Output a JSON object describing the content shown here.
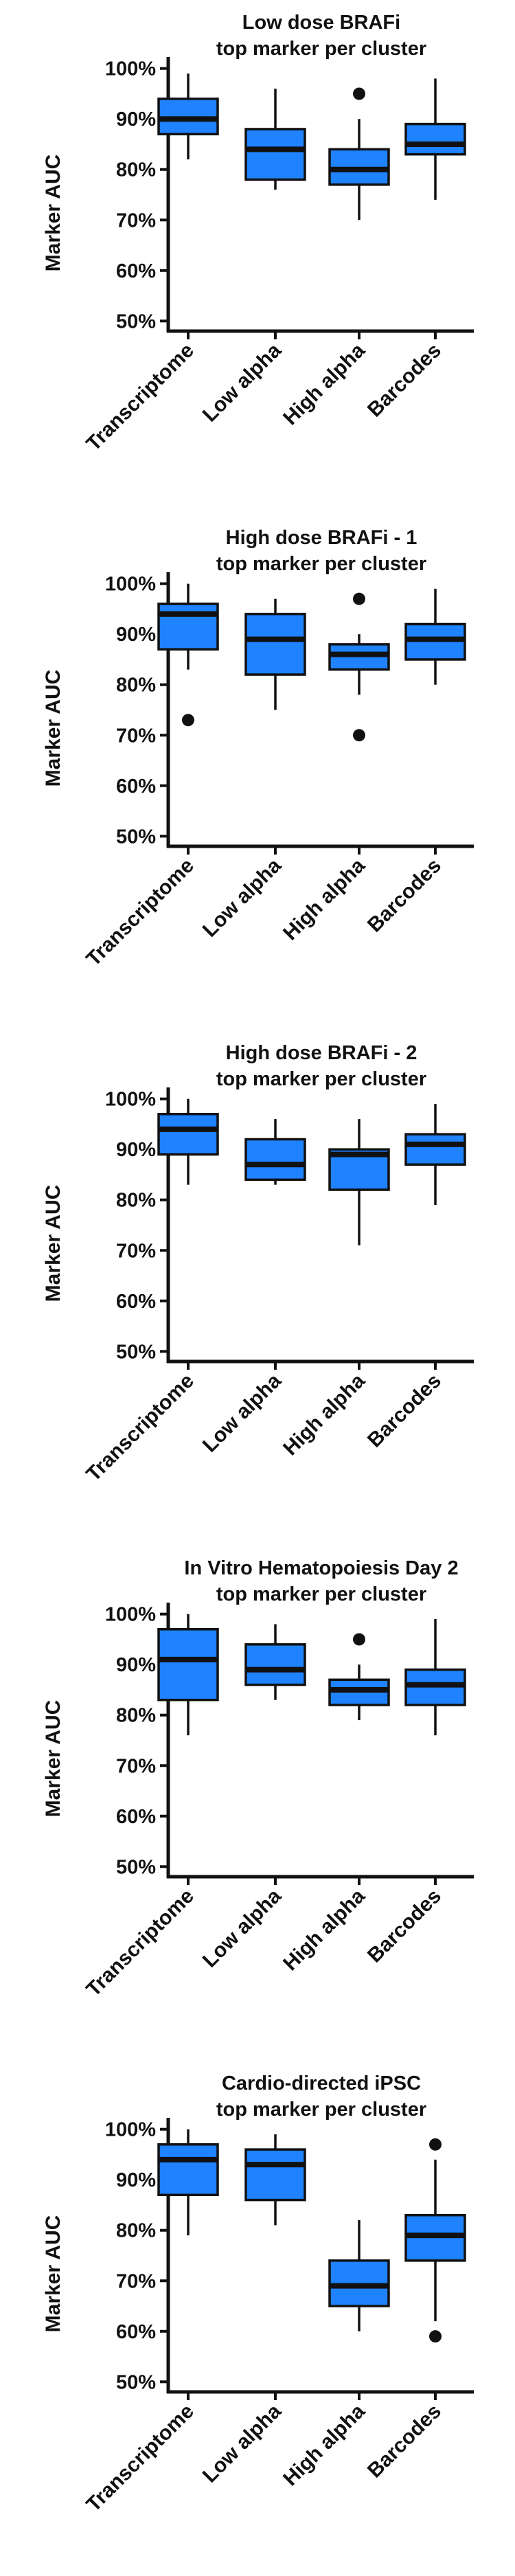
{
  "theme": {
    "box_fill": "#1f82ff",
    "box_stroke": "#111111",
    "axis_color": "#111111"
  },
  "chart_data": [
    {
      "type": "box",
      "title_lines": [
        "Low dose BRAFi",
        "top marker per cluster"
      ],
      "ylabel": "Marker AUC",
      "yticks": [
        "50%",
        "60%",
        "70%",
        "80%",
        "90%",
        "100%"
      ],
      "ylim": [
        0.48,
        1.02
      ],
      "categories": [
        "Transcriptome",
        "Low alpha",
        "High alpha",
        "Barcodes"
      ],
      "boxes": [
        {
          "whisker_low": 0.82,
          "q1": 0.87,
          "median": 0.9,
          "q3": 0.94,
          "whisker_high": 0.99,
          "outliers": []
        },
        {
          "whisker_low": 0.76,
          "q1": 0.78,
          "median": 0.84,
          "q3": 0.88,
          "whisker_high": 0.96,
          "outliers": []
        },
        {
          "whisker_low": 0.7,
          "q1": 0.77,
          "median": 0.8,
          "q3": 0.84,
          "whisker_high": 0.9,
          "outliers": [
            0.95
          ]
        },
        {
          "whisker_low": 0.74,
          "q1": 0.83,
          "median": 0.85,
          "q3": 0.89,
          "whisker_high": 0.98,
          "outliers": []
        }
      ]
    },
    {
      "type": "box",
      "title_lines": [
        "High dose BRAFi - 1",
        "top marker per cluster"
      ],
      "ylabel": "Marker AUC",
      "yticks": [
        "50%",
        "60%",
        "70%",
        "80%",
        "90%",
        "100%"
      ],
      "ylim": [
        0.48,
        1.02
      ],
      "categories": [
        "Transcriptome",
        "Low alpha",
        "High alpha",
        "Barcodes"
      ],
      "boxes": [
        {
          "whisker_low": 0.83,
          "q1": 0.87,
          "median": 0.94,
          "q3": 0.96,
          "whisker_high": 1.0,
          "outliers": [
            0.73
          ]
        },
        {
          "whisker_low": 0.75,
          "q1": 0.82,
          "median": 0.89,
          "q3": 0.94,
          "whisker_high": 0.97,
          "outliers": []
        },
        {
          "whisker_low": 0.78,
          "q1": 0.83,
          "median": 0.86,
          "q3": 0.88,
          "whisker_high": 0.9,
          "outliers": [
            0.97,
            0.7
          ]
        },
        {
          "whisker_low": 0.8,
          "q1": 0.85,
          "median": 0.89,
          "q3": 0.92,
          "whisker_high": 0.99,
          "outliers": []
        }
      ]
    },
    {
      "type": "box",
      "title_lines": [
        "High dose BRAFi - 2",
        "top marker per cluster"
      ],
      "ylabel": "Marker AUC",
      "yticks": [
        "50%",
        "60%",
        "70%",
        "80%",
        "90%",
        "100%"
      ],
      "ylim": [
        0.48,
        1.02
      ],
      "categories": [
        "Transcriptome",
        "Low alpha",
        "High alpha",
        "Barcodes"
      ],
      "boxes": [
        {
          "whisker_low": 0.83,
          "q1": 0.89,
          "median": 0.94,
          "q3": 0.97,
          "whisker_high": 1.0,
          "outliers": []
        },
        {
          "whisker_low": 0.83,
          "q1": 0.84,
          "median": 0.87,
          "q3": 0.92,
          "whisker_high": 0.96,
          "outliers": []
        },
        {
          "whisker_low": 0.71,
          "q1": 0.82,
          "median": 0.89,
          "q3": 0.9,
          "whisker_high": 0.96,
          "outliers": []
        },
        {
          "whisker_low": 0.79,
          "q1": 0.87,
          "median": 0.91,
          "q3": 0.93,
          "whisker_high": 0.99,
          "outliers": []
        }
      ]
    },
    {
      "type": "box",
      "title_lines": [
        "In Vitro Hematopoiesis Day 2",
        "top marker per cluster"
      ],
      "ylabel": "Marker AUC",
      "yticks": [
        "50%",
        "60%",
        "70%",
        "80%",
        "90%",
        "100%"
      ],
      "ylim": [
        0.48,
        1.02
      ],
      "categories": [
        "Transcriptome",
        "Low alpha",
        "High alpha",
        "Barcodes"
      ],
      "boxes": [
        {
          "whisker_low": 0.76,
          "q1": 0.83,
          "median": 0.91,
          "q3": 0.97,
          "whisker_high": 1.0,
          "outliers": []
        },
        {
          "whisker_low": 0.83,
          "q1": 0.86,
          "median": 0.89,
          "q3": 0.94,
          "whisker_high": 0.98,
          "outliers": []
        },
        {
          "whisker_low": 0.79,
          "q1": 0.82,
          "median": 0.85,
          "q3": 0.87,
          "whisker_high": 0.9,
          "outliers": [
            0.95
          ]
        },
        {
          "whisker_low": 0.76,
          "q1": 0.82,
          "median": 0.86,
          "q3": 0.89,
          "whisker_high": 0.99,
          "outliers": []
        }
      ]
    },
    {
      "type": "box",
      "title_lines": [
        "Cardio-directed iPSC",
        "top marker per cluster"
      ],
      "ylabel": "Marker AUC",
      "yticks": [
        "50%",
        "60%",
        "70%",
        "80%",
        "90%",
        "100%"
      ],
      "ylim": [
        0.48,
        1.02
      ],
      "categories": [
        "Transcriptome",
        "Low alpha",
        "High alpha",
        "Barcodes"
      ],
      "boxes": [
        {
          "whisker_low": 0.79,
          "q1": 0.87,
          "median": 0.94,
          "q3": 0.97,
          "whisker_high": 1.0,
          "outliers": []
        },
        {
          "whisker_low": 0.81,
          "q1": 0.86,
          "median": 0.93,
          "q3": 0.96,
          "whisker_high": 0.99,
          "outliers": []
        },
        {
          "whisker_low": 0.6,
          "q1": 0.65,
          "median": 0.69,
          "q3": 0.74,
          "whisker_high": 0.82,
          "outliers": []
        },
        {
          "whisker_low": 0.62,
          "q1": 0.74,
          "median": 0.79,
          "q3": 0.83,
          "whisker_high": 0.94,
          "outliers": [
            0.97,
            0.59
          ]
        }
      ]
    }
  ]
}
